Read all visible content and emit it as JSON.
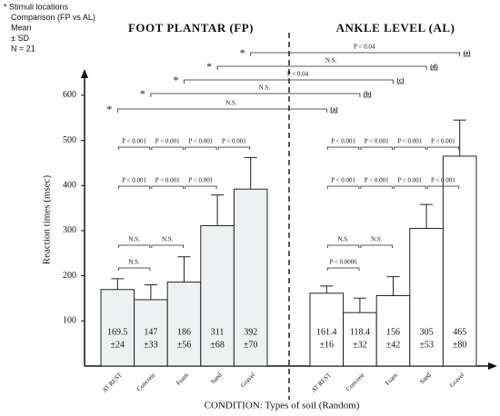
{
  "chart_data": {
    "type": "bar",
    "notes": [
      "* Stimuli locations",
      "Comparison (FP vs AL)",
      "Mean",
      "± SD",
      "N = 21"
    ],
    "y_label": "Reaction times (msec)",
    "x_label": "CONDITION: Types of soil (Random)",
    "categories": [
      "AT REST",
      "Concrete",
      "Foam",
      "Sand",
      "Gravel"
    ],
    "ylim": [
      0,
      650
    ],
    "yticks": [
      100,
      200,
      300,
      400,
      500,
      600
    ],
    "series": [
      {
        "name": "FOOT PLANTAR (FP)",
        "color": "#eef1f1",
        "values": [
          169.5,
          147,
          186,
          311,
          392
        ],
        "errors": [
          24,
          33,
          56,
          68,
          70
        ],
        "error_labels": [
          "±24",
          "±33",
          "±56",
          "±68",
          "±70"
        ],
        "significance_rows": [
          [
            "N.S."
          ],
          [
            "N.S.",
            "N.S."
          ],
          [
            "P < 0.001",
            "P < 0.001",
            "P < 0.001"
          ],
          [
            "P < 0.001",
            "P < 0.001",
            "P < 0.001",
            "P < 0.001"
          ]
        ]
      },
      {
        "name": "ANKLE LEVEL (AL)",
        "color": "#ffffff",
        "values": [
          161.4,
          118.4,
          156,
          305,
          465
        ],
        "errors": [
          16,
          32,
          42,
          53,
          80
        ],
        "error_labels": [
          "±16",
          "±32",
          "±42",
          "±53",
          "±80"
        ],
        "significance_rows": [
          [
            "P < 0.0006"
          ],
          [
            "N.S.",
            "N.S."
          ],
          [
            "P < 0.001",
            "P < 0.001",
            "P < 0.001",
            "P < 0.001"
          ],
          [
            "P < 0.001",
            "P < 0.001",
            "P < 0.001",
            "P < 0.001"
          ]
        ]
      }
    ],
    "between_marker": "*",
    "between_comparisons": [
      {
        "label": "N.S.",
        "tag": "(a)"
      },
      {
        "label": "N.S.",
        "tag": "(b)"
      },
      {
        "label": "P < 0.04",
        "tag": "(c)"
      },
      {
        "label": "N.S.",
        "tag": "(d)"
      },
      {
        "label": "P < 0.04",
        "tag": "(e)"
      }
    ]
  }
}
